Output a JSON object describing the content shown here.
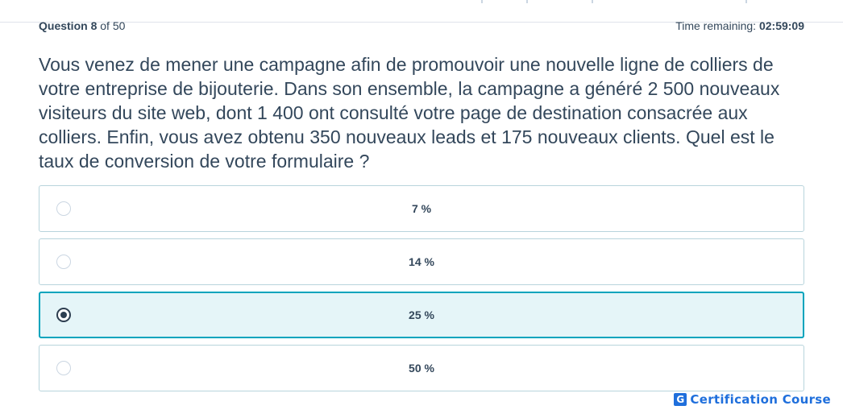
{
  "header": {
    "question_label": "Question",
    "question_number": "8",
    "question_of": "of 50",
    "time_label": "Time remaining:",
    "time_value": "02:59:09"
  },
  "question": {
    "text": "Vous venez de mener une campagne afin de promouvoir une nouvelle ligne de colliers de votre entreprise de bijouterie. Dans son ensemble, la campagne a généré 2 500 nouveaux visiteurs du site web, dont 1 400 ont consulté votre page de destination consacrée aux colliers. Enfin, vous avez obtenu 350 nouveaux leads et 175 nouveaux clients. Quel est le taux de conversion de votre formulaire ?"
  },
  "options": [
    {
      "label": "7 %",
      "selected": false
    },
    {
      "label": "14 %",
      "selected": false
    },
    {
      "label": "25 %",
      "selected": true
    },
    {
      "label": "50 %",
      "selected": false
    }
  ],
  "watermark": {
    "logo_letter": "G",
    "text": "Certification Course"
  },
  "colors": {
    "selected_border": "#00a4bd",
    "selected_background": "#e5f5f8",
    "text": "#33475b",
    "watermark": "#1f6fdc"
  }
}
